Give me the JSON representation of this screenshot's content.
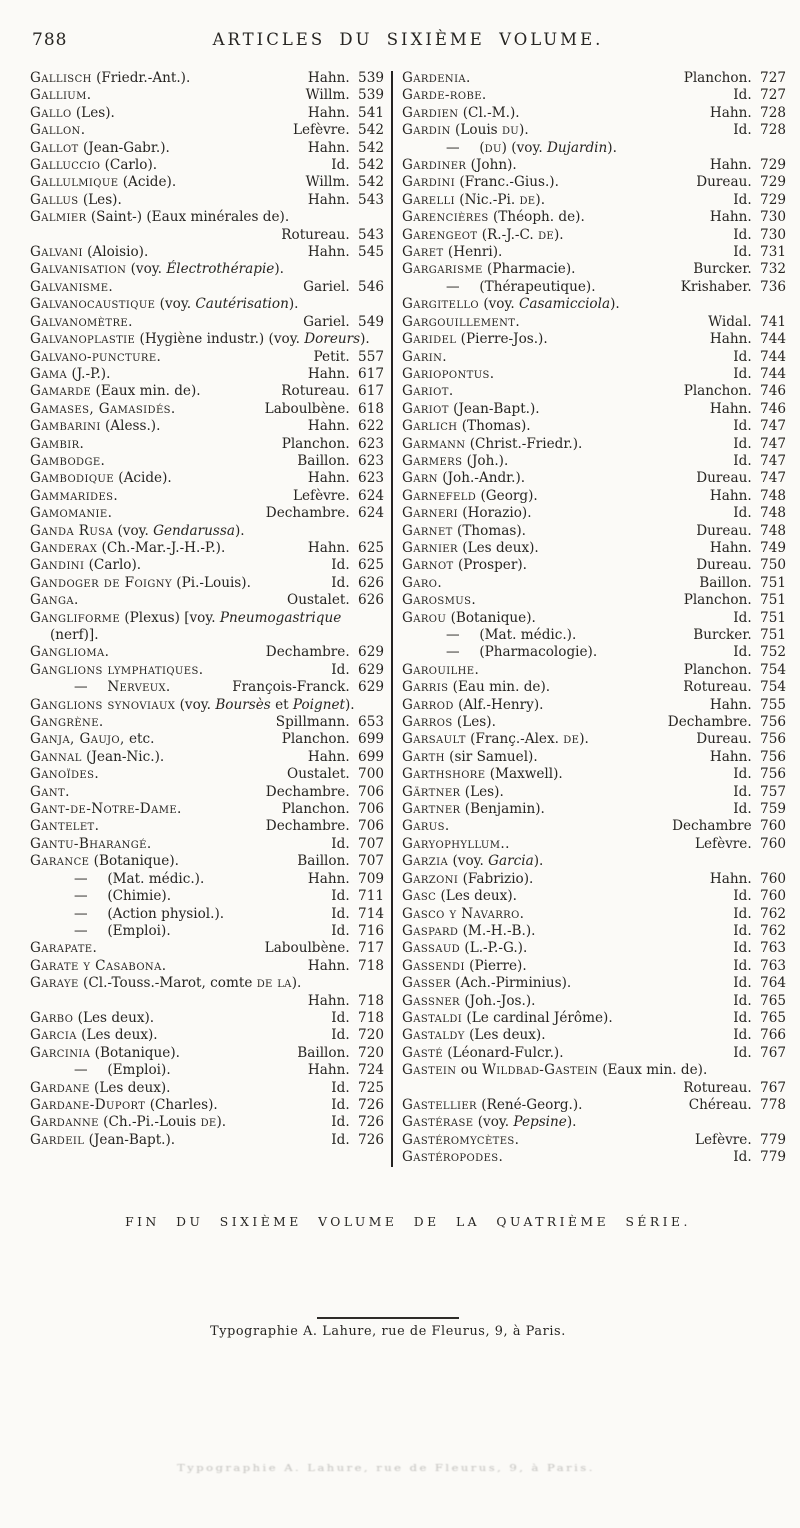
{
  "page": {
    "number": "788",
    "header_title": "ARTICLES DU SIXIÈME VOLUME.",
    "footer_fin": "FIN DU SIXIÈME VOLUME DE LA QUATRIÈME SÉRIE.",
    "imprint": "Typographie A. Lahure, rue de Fleurus, 9, à Paris.",
    "imprint_ghost": "Typographie A. Lahure, rue de Fleurus, 9, à Paris."
  },
  "index": {
    "left": [
      {
        "t": "Gallisch",
        "r": " (Friedr.-Ant.).",
        "a": "Hahn.",
        "p": "539"
      },
      {
        "t": "Gallium.",
        "a": "Willm.",
        "p": "539"
      },
      {
        "t": "Gallo",
        "r": " (Les).",
        "a": "Hahn.",
        "p": "541"
      },
      {
        "t": "Gallon.",
        "a": "Lefèvre.",
        "p": "542"
      },
      {
        "t": "Gallot",
        "r": " (Jean-Gabr.).",
        "a": "Hahn.",
        "p": "542"
      },
      {
        "t": "Galluccio",
        "r": " (Carlo).",
        "a": "Id.",
        "p": "542"
      },
      {
        "t": "Gallulmique",
        "r": " (Acide).",
        "a": "Willm.",
        "p": "542"
      },
      {
        "t": "Gallus",
        "r": " (Les).",
        "a": "Hahn.",
        "p": "543"
      },
      {
        "t": "Galmier",
        "r": " (Saint-) (Eaux minérales de).",
        "a": "Rotureau.",
        "p": "543",
        "below": true
      },
      {
        "t": "Galvani",
        "r": " (Aloisio).",
        "a": "Hahn.",
        "p": "545"
      },
      {
        "t": "Galvanisation",
        "r": " (voy. *Électrothérapie*)."
      },
      {
        "t": "Galvanisme.",
        "a": "Gariel.",
        "p": "546"
      },
      {
        "t": "Galvanocaustique",
        "r": " (voy. *Cautérisation*)."
      },
      {
        "t": "Galvanomètre.",
        "a": "Gariel.",
        "p": "549"
      },
      {
        "t": "Galvanoplastie",
        "r": " (Hygiène industr.) (voy. *Doreurs*)."
      },
      {
        "t": "Galvano-puncture.",
        "a": "Petit.",
        "p": "557"
      },
      {
        "t": "Gama",
        "r": " (J.-P.).",
        "a": "Hahn.",
        "p": "617"
      },
      {
        "t": "Gamarde",
        "r": " (Eaux min. de).",
        "a": "Rotureau.",
        "p": "617"
      },
      {
        "t": "Gamases, Gamasidés.",
        "a": "Laboulbène.",
        "p": "618"
      },
      {
        "t": "Gambarini",
        "r": " (Aless.).",
        "a": "Hahn.",
        "p": "622"
      },
      {
        "t": "Gambir.",
        "a": "Planchon.",
        "p": "623"
      },
      {
        "t": "Gambodge.",
        "a": "Baillon.",
        "p": "623"
      },
      {
        "t": "Gambodique",
        "r": " (Acide).",
        "a": "Hahn.",
        "p": "623"
      },
      {
        "t": "Gammarides.",
        "a": "Lefèvre.",
        "p": "624"
      },
      {
        "t": "Gamomanie.",
        "a": "Dechambre.",
        "p": "624"
      },
      {
        "t": "Ganda Rusa",
        "r": " (voy. *Gendarussa*)."
      },
      {
        "t": "Ganderax",
        "r": " (Ch.-Mar.-J.-H.-P.).",
        "a": "Hahn.",
        "p": "625"
      },
      {
        "t": "Gandini",
        "r": " (Carlo).",
        "a": "Id.",
        "p": "625"
      },
      {
        "t": "Gandoger de Foigny",
        "r": " (Pi.-Louis).",
        "a": "Id.",
        "p": "626"
      },
      {
        "t": "Ganga.",
        "a": "Oustalet.",
        "p": "626"
      },
      {
        "t": "Gangliforme",
        "r": " (Plexus) [voy. *Pneumogastrique* (nerf)]."
      },
      {
        "t": "Ganglioma.",
        "a": "Dechambre.",
        "p": "629"
      },
      {
        "t": "Ganglions lymphatiques.",
        "a": "Id.",
        "p": "629"
      },
      {
        "t": "—",
        "r": " ~Nerveux.~",
        "a": "François-Franck.",
        "p": "629",
        "sub": true
      },
      {
        "t": "Ganglions synoviaux",
        "r": " (voy. *Boursès* et *Poignet*)."
      },
      {
        "t": "Gangrène.",
        "a": "Spillmann.",
        "p": "653"
      },
      {
        "t": "Ganja, Gaujo,",
        "r": " etc.",
        "a": "Planchon.",
        "p": "699"
      },
      {
        "t": "Gannal",
        "r": " (Jean-Nic.).",
        "a": "Hahn.",
        "p": "699"
      },
      {
        "t": "Ganoïdes.",
        "a": "Oustalet.",
        "p": "700"
      },
      {
        "t": "Gant.",
        "a": "Dechambre.",
        "p": "706"
      },
      {
        "t": "Gant-de-Notre-Dame.",
        "a": "Planchon.",
        "p": "706"
      },
      {
        "t": "Gantelet.",
        "a": "Dechambre.",
        "p": "706"
      },
      {
        "t": "Gantu-Bharangé.",
        "a": "Id.",
        "p": "707"
      },
      {
        "t": "Garance",
        "r": " (Botanique).",
        "a": "Baillon.",
        "p": "707"
      },
      {
        "t": "—",
        "r": " (Mat. médic.).",
        "a": "Hahn.",
        "p": "709",
        "sub": true
      },
      {
        "t": "—",
        "r": " (Chimie).",
        "a": "Id.",
        "p": "711",
        "sub": true
      },
      {
        "t": "—",
        "r": " (Action physiol.).",
        "a": "Id.",
        "p": "714",
        "sub": true
      },
      {
        "t": "—",
        "r": " (Emploi).",
        "a": "Id.",
        "p": "716",
        "sub": true
      },
      {
        "t": "Garapate.",
        "a": "Laboulbène.",
        "p": "717"
      },
      {
        "t": "Garate y Casabona.",
        "a": "Hahn.",
        "p": "718"
      },
      {
        "t": "Garaye",
        "r": " (Cl.-Touss.-Marot, comte ~de la~).",
        "a": "Hahn.",
        "p": "718",
        "below": true
      },
      {
        "t": "Garbo",
        "r": " (Les deux).",
        "a": "Id.",
        "p": "718"
      },
      {
        "t": "Garcia",
        "r": " (Les deux).",
        "a": "Id.",
        "p": "720"
      },
      {
        "t": "Garcinia",
        "r": " (Botanique).",
        "a": "Baillon.",
        "p": "720"
      },
      {
        "t": "—",
        "r": " (Emploi).",
        "a": "Hahn.",
        "p": "724",
        "sub": true
      },
      {
        "t": "Gardane",
        "r": " (Les deux).",
        "a": "Id.",
        "p": "725"
      },
      {
        "t": "Gardane-Duport",
        "r": " (Charles).",
        "a": "Id.",
        "p": "726"
      },
      {
        "t": "Gardanne",
        "r": " (Ch.-Pi.-Louis ~de~).",
        "a": "Id.",
        "p": "726"
      },
      {
        "t": "Gardeil",
        "r": " (Jean-Bapt.).",
        "a": "Id.",
        "p": "726"
      }
    ],
    "right": [
      {
        "t": "Gardenia.",
        "a": "Planchon.",
        "p": "727"
      },
      {
        "t": "Garde-robe.",
        "a": "Id.",
        "p": "727"
      },
      {
        "t": "Gardien",
        "r": " (Cl.-M.).",
        "a": "Hahn.",
        "p": "728"
      },
      {
        "t": "Gardin",
        "r": " (Louis ~du~).",
        "a": "Id.",
        "p": "728"
      },
      {
        "t": "—",
        "r": " (~du~) (voy. *Dujardin*).",
        "sub": true
      },
      {
        "t": "Gardiner",
        "r": " (John).",
        "a": "Hahn.",
        "p": "729"
      },
      {
        "t": "Gardini",
        "r": " (Franc.-Gius.).",
        "a": "Dureau.",
        "p": "729"
      },
      {
        "t": "Garelli",
        "r": " (Nic.-Pi. ~de~).",
        "a": "Id.",
        "p": "729"
      },
      {
        "t": "Garencières",
        "r": " (Théoph. de).",
        "a": "Hahn.",
        "p": "730"
      },
      {
        "t": "Garengeot",
        "r": " (R.-J.-C. ~de~).",
        "a": "Id.",
        "p": "730"
      },
      {
        "t": "Garet",
        "r": " (Henri).",
        "a": "Id.",
        "p": "731"
      },
      {
        "t": "Gargarisme",
        "r": " (Pharmacie).",
        "a": "Burcker.",
        "p": "732"
      },
      {
        "t": "—",
        "r": " (Thérapeutique).",
        "a": "Krishaber.",
        "p": "736",
        "sub": true
      },
      {
        "t": "Gargitello",
        "r": " (voy. *Casamicciola*)."
      },
      {
        "t": "Gargouillement.",
        "a": "Widal.",
        "p": "741"
      },
      {
        "t": "Garidel",
        "r": " (Pierre-Jos.).",
        "a": "Hahn.",
        "p": "744"
      },
      {
        "t": "Garin.",
        "a": "Id.",
        "p": "744"
      },
      {
        "t": "Gariopontus.",
        "a": "Id.",
        "p": "744"
      },
      {
        "t": "Gariot.",
        "a": "Planchon.",
        "p": "746"
      },
      {
        "t": "Gariot",
        "r": " (Jean-Bapt.).",
        "a": "Hahn.",
        "p": "746"
      },
      {
        "t": "Garlich",
        "r": " (Thomas).",
        "a": "Id.",
        "p": "747"
      },
      {
        "t": "Garmann",
        "r": " (Christ.-Friedr.).",
        "a": "Id.",
        "p": "747"
      },
      {
        "t": "Garmers",
        "r": " (Joh.).",
        "a": "Id.",
        "p": "747"
      },
      {
        "t": "Garn",
        "r": " (Joh.-Andr.).",
        "a": "Dureau.",
        "p": "747"
      },
      {
        "t": "Garnefeld",
        "r": " (Georg).",
        "a": "Hahn.",
        "p": "748"
      },
      {
        "t": "Garneri",
        "r": " (Horazio).",
        "a": "Id.",
        "p": "748"
      },
      {
        "t": "Garnet",
        "r": " (Thomas).",
        "a": "Dureau.",
        "p": "748"
      },
      {
        "t": "Garnier",
        "r": " (Les deux).",
        "a": "Hahn.",
        "p": "749"
      },
      {
        "t": "Garnot",
        "r": " (Prosper).",
        "a": "Dureau.",
        "p": "750"
      },
      {
        "t": "Garo.",
        "a": "Baillon.",
        "p": "751"
      },
      {
        "t": "Garosmus.",
        "a": "Planchon.",
        "p": "751"
      },
      {
        "t": "Garou",
        "r": " (Botanique).",
        "a": "Id.",
        "p": "751"
      },
      {
        "t": "—",
        "r": " (Mat. médic.).",
        "a": "Burcker.",
        "p": "751",
        "sub": true
      },
      {
        "t": "—",
        "r": " (Pharmacologie).",
        "a": "Id.",
        "p": "752",
        "sub": true
      },
      {
        "t": "Garouilhe.",
        "a": "Planchon.",
        "p": "754"
      },
      {
        "t": "Garris",
        "r": " (Eau min. de).",
        "a": "Rotureau.",
        "p": "754"
      },
      {
        "t": "Garrod",
        "r": " (Alf.-Henry).",
        "a": "Hahn.",
        "p": "755"
      },
      {
        "t": "Garros",
        "r": " (Les).",
        "a": "Dechambre.",
        "p": "756"
      },
      {
        "t": "Garsault",
        "r": " (Franç.-Alex. ~de~).",
        "a": "Dureau.",
        "p": "756"
      },
      {
        "t": "Garth",
        "r": " (sir Samuel).",
        "a": "Hahn.",
        "p": "756"
      },
      {
        "t": "Garthshore",
        "r": " (Maxwell).",
        "a": "Id.",
        "p": "756"
      },
      {
        "t": "Gärtner",
        "r": " (Les).",
        "a": "Id.",
        "p": "757"
      },
      {
        "t": "Gartner",
        "r": " (Benjamin).",
        "a": "Id.",
        "p": "759"
      },
      {
        "t": "Garus.",
        "a": "Dechambre",
        "p": "760"
      },
      {
        "t": "Garyophyllum..",
        "a": "Lefèvre.",
        "p": "760"
      },
      {
        "t": "Garzia",
        "r": " (voy. *Garcia*)."
      },
      {
        "t": "Garzoni",
        "r": " (Fabrizio).",
        "a": "Hahn.",
        "p": "760"
      },
      {
        "t": "Gasc",
        "r": " (Les deux).",
        "a": "Id.",
        "p": "760"
      },
      {
        "t": "Gasco y Navarro.",
        "a": "Id.",
        "p": "762"
      },
      {
        "t": "Gaspard",
        "r": " (M.-H.-B.).",
        "a": "Id.",
        "p": "762"
      },
      {
        "t": "Gassaud",
        "r": " (L.-P.-G.).",
        "a": "Id.",
        "p": "763"
      },
      {
        "t": "Gassendi",
        "r": " (Pierre).",
        "a": "Id.",
        "p": "763"
      },
      {
        "t": "Gasser",
        "r": " (Ach.-Pirminius).",
        "a": "Id.",
        "p": "764"
      },
      {
        "t": "Gassner",
        "r": " (Joh.-Jos.).",
        "a": "Id.",
        "p": "765"
      },
      {
        "t": "Gastaldi",
        "r": " (Le cardinal Jérôme).",
        "a": "Id.",
        "p": "765"
      },
      {
        "t": "Gastaldy",
        "r": " (Les deux).",
        "a": "Id.",
        "p": "766"
      },
      {
        "t": "Gasté",
        "r": " (Léonard-Fulcr.).",
        "a": "Id.",
        "p": "767"
      },
      {
        "t": "Gastein",
        "r": " ou ~Wildbad-Gastein~ (Eaux min. de).",
        "a": "Rotureau.",
        "p": "767",
        "below": true
      },
      {
        "t": "Gastellier",
        "r": " (René-Georg.).",
        "a": "Chéreau.",
        "p": "778"
      },
      {
        "t": "Gastérase",
        "r": " (voy. *Pepsine*)."
      },
      {
        "t": "Gastéromycètes.",
        "a": "Lefèvre.",
        "p": "779"
      },
      {
        "t": "Gastéropodes.",
        "a": "Id.",
        "p": "779"
      }
    ]
  }
}
